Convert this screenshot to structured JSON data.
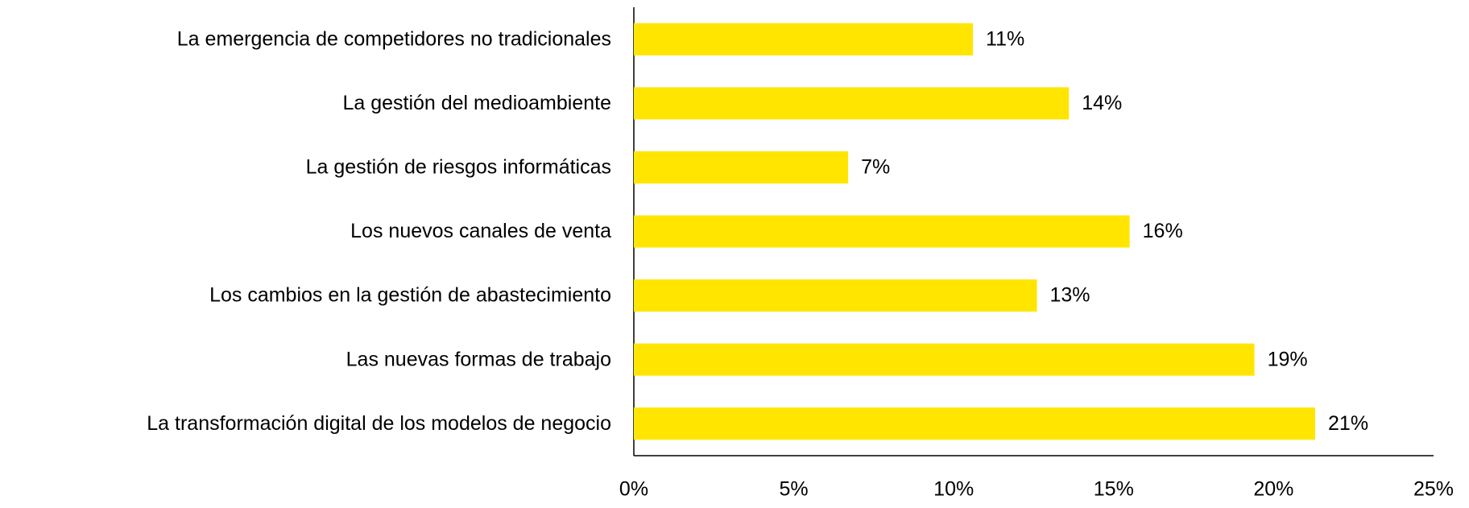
{
  "chart_data": {
    "type": "barh",
    "categories": [
      "La emergencia de competidores no tradicionales",
      "La gestión del medioambiente",
      "La gestión de riesgos informáticas",
      "Los nuevos canales de venta",
      "Los cambios en la gestión de abastecimiento",
      "Las nuevas formas de trabajo",
      "La transformación digital de los modelos de negocio"
    ],
    "values": [
      10.6,
      13.6,
      6.7,
      15.5,
      12.6,
      19.4,
      21.3
    ],
    "value_labels": [
      "11%",
      "14%",
      "7%",
      "16%",
      "13%",
      "19%",
      "21%"
    ],
    "color": "#FFE500",
    "xlim": [
      0,
      25
    ],
    "xticks": [
      {
        "value": 0,
        "label": "0%"
      },
      {
        "value": 5,
        "label": "5%"
      },
      {
        "value": 10,
        "label": "10%"
      },
      {
        "value": 15,
        "label": "15%"
      },
      {
        "value": 20,
        "label": "20%"
      },
      {
        "value": 25,
        "label": "25%"
      }
    ],
    "grid": false
  }
}
